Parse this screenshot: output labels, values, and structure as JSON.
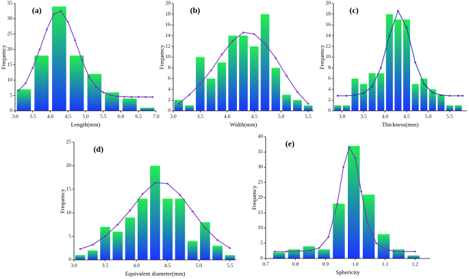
{
  "chart_data": [
    {
      "type": "histogram",
      "title": "(a)",
      "xlabel": "Length(mm)",
      "ylabel": "Frequency",
      "bins": [
        3.0,
        3.5,
        4.0,
        4.5,
        5.0,
        5.5,
        6.0,
        6.5,
        7.0
      ],
      "counts": [
        7,
        18,
        34,
        18,
        12,
        6,
        4,
        1
      ],
      "fit": {
        "x": [
          3.1,
          3.3,
          3.5,
          3.7,
          3.9,
          4.1,
          4.3,
          4.5,
          4.7,
          4.9,
          5.1,
          5.3,
          5.5,
          5.7,
          5.9,
          6.1,
          6.3,
          6.5,
          6.7,
          6.9
        ],
        "y": [
          6.6,
          9,
          14,
          20,
          26.5,
          31.5,
          32.5,
          29,
          23,
          16.5,
          11,
          7.8,
          6,
          5.1,
          4.7,
          4.6,
          4.5,
          4.5,
          4.5,
          4.5
        ],
        "color": "#7a2fc0"
      },
      "bar_colors": [
        "#22ec50",
        "#1a35ff"
      ],
      "xlim": [
        3.0,
        7.0
      ],
      "xticks": [
        {
          "value": 3,
          "label": "3.0"
        },
        3.5,
        {
          "value": 4,
          "label": "4.0"
        },
        4.5,
        {
          "value": 5,
          "label": "5.0"
        },
        5.5,
        {
          "value": 6,
          "label": "6.0"
        },
        6.5,
        {
          "value": 7,
          "label": "7.0"
        }
      ],
      "ylim": [
        0,
        35
      ],
      "yticks": [
        0,
        5,
        10,
        15,
        20,
        25,
        30,
        35
      ]
    },
    {
      "type": "histogram",
      "title": "(b)",
      "xlabel": "Width(mm)",
      "ylabel": "Frequency",
      "bins": [
        3.0,
        3.2,
        3.4,
        3.6,
        3.8,
        4.0,
        4.2,
        4.4,
        4.6,
        4.8,
        5.0,
        5.2,
        5.4,
        5.6
      ],
      "counts": [
        2,
        1,
        10,
        6,
        9,
        14,
        14,
        12,
        18,
        8,
        3,
        2,
        1
      ],
      "fit": {
        "x": [
          3.1,
          3.3,
          3.5,
          3.7,
          3.9,
          4.1,
          4.3,
          4.5,
          4.7,
          4.9,
          5.1,
          5.3,
          5.5
        ],
        "y": [
          1.3,
          3,
          5,
          7.5,
          10.5,
          13,
          14.6,
          14.3,
          12.5,
          9.8,
          6.5,
          3.5,
          1.3
        ],
        "color": "#7a2fc0"
      },
      "bar_colors": [
        "#22ec50",
        "#1a35ff"
      ],
      "xlim": [
        3.0,
        5.6
      ],
      "xticks": [
        {
          "value": 3,
          "label": "3.0"
        },
        3.5,
        {
          "value": 4,
          "label": "4.0"
        },
        4.5,
        {
          "value": 5,
          "label": "5.0"
        },
        5.5
      ],
      "ylim": [
        0,
        20
      ],
      "yticks": [
        0,
        2,
        4,
        6,
        8,
        10,
        12,
        14,
        16,
        18,
        20
      ]
    },
    {
      "type": "histogram",
      "title": "(c)",
      "xlabel": "Thickness(mm)",
      "ylabel": "Frequency",
      "bins": [
        2.8,
        3.0,
        3.2,
        3.4,
        3.6,
        3.8,
        4.0,
        4.2,
        4.4,
        4.6,
        4.8,
        5.0,
        5.2,
        5.4,
        5.6,
        5.8
      ],
      "counts": [
        1,
        1,
        6,
        5,
        7,
        7,
        18,
        17,
        17,
        5,
        6,
        4,
        3,
        1,
        1
      ],
      "fit": {
        "x": [
          2.9,
          3.1,
          3.3,
          3.5,
          3.7,
          3.9,
          4.1,
          4.3,
          4.5,
          4.7,
          4.9,
          5.1,
          5.3,
          5.5,
          5.7,
          5.8
        ],
        "y": [
          2.8,
          2.8,
          2.9,
          3.3,
          4.5,
          8,
          14,
          18.6,
          15.5,
          9,
          5,
          3.4,
          2.9,
          2.8,
          2.8,
          2.8
        ],
        "color": "#2a3aa8"
      },
      "bar_colors": [
        "#22ec50",
        "#1a35ff"
      ],
      "xlim": [
        2.8,
        5.9
      ],
      "xticks": [
        {
          "value": 3,
          "label": "3.0"
        },
        3.5,
        {
          "value": 4,
          "label": "4.0"
        },
        4.5,
        {
          "value": 5,
          "label": "5.0"
        },
        5.5
      ],
      "ylim": [
        0,
        20
      ],
      "yticks": [
        0,
        2,
        4,
        6,
        8,
        10,
        12,
        14,
        16,
        18,
        20
      ]
    },
    {
      "type": "histogram",
      "title": "(d)",
      "xlabel": "Equivalent diameter(mm)",
      "ylabel": "Frequency",
      "bins": [
        3.0,
        3.2,
        3.4,
        3.6,
        3.8,
        4.0,
        4.2,
        4.4,
        4.6,
        4.8,
        5.0,
        5.2,
        5.4,
        5.6
      ],
      "counts": [
        1,
        2,
        7,
        6,
        9,
        13,
        20,
        13,
        13,
        4,
        8,
        3,
        1
      ],
      "fit": {
        "x": [
          3.1,
          3.3,
          3.5,
          3.7,
          3.9,
          4.1,
          4.3,
          4.5,
          4.7,
          4.9,
          5.1,
          5.3,
          5.5
        ],
        "y": [
          2.3,
          3.2,
          5,
          7.5,
          10.5,
          14,
          16.4,
          16.2,
          13.8,
          10.3,
          6.8,
          4.2,
          2.5
        ],
        "color": "#7a2fc0"
      },
      "bar_colors": [
        "#22ec50",
        "#1a35ff"
      ],
      "xlim": [
        3.0,
        5.6
      ],
      "xticks": [
        {
          "value": 3,
          "label": "3.0"
        },
        3.5,
        {
          "value": 4,
          "label": "4.0"
        },
        4.5,
        {
          "value": 5,
          "label": "5.0"
        },
        5.5
      ],
      "ylim": [
        0,
        25
      ],
      "yticks": [
        0,
        5,
        10,
        15,
        20,
        25
      ]
    },
    {
      "type": "histogram",
      "title": "(e)",
      "xlabel": "Sphericity",
      "ylabel": "Frequency",
      "bins": [
        0.72,
        0.77,
        0.82,
        0.87,
        0.92,
        0.97,
        1.02,
        1.07,
        1.12,
        1.17,
        1.22
      ],
      "counts": [
        2,
        3,
        4,
        3,
        18,
        37,
        21,
        8,
        3,
        1
      ],
      "fit": {
        "x": [
          0.73,
          0.77,
          0.81,
          0.85,
          0.88,
          0.91,
          0.94,
          0.96,
          0.98,
          1.0,
          1.02,
          1.04,
          1.07,
          1.1,
          1.13,
          1.16,
          1.2
        ],
        "y": [
          2.3,
          2.3,
          2.4,
          2.6,
          3.5,
          7,
          18,
          30,
          36.5,
          33,
          22,
          12,
          5,
          3,
          2.4,
          2.3,
          2.3
        ],
        "color": "#7a2fc0"
      },
      "bar_colors": [
        "#22ec50",
        "#1a35ff"
      ],
      "xlim": [
        0.7,
        1.25
      ],
      "xticks": [
        0.7,
        0.8,
        0.9,
        {
          "value": 1,
          "label": "1.0"
        },
        1.1,
        1.2
      ],
      "ylim": [
        0,
        40
      ],
      "yticks": [
        0,
        5,
        10,
        15,
        20,
        25,
        30,
        35,
        40
      ]
    }
  ]
}
